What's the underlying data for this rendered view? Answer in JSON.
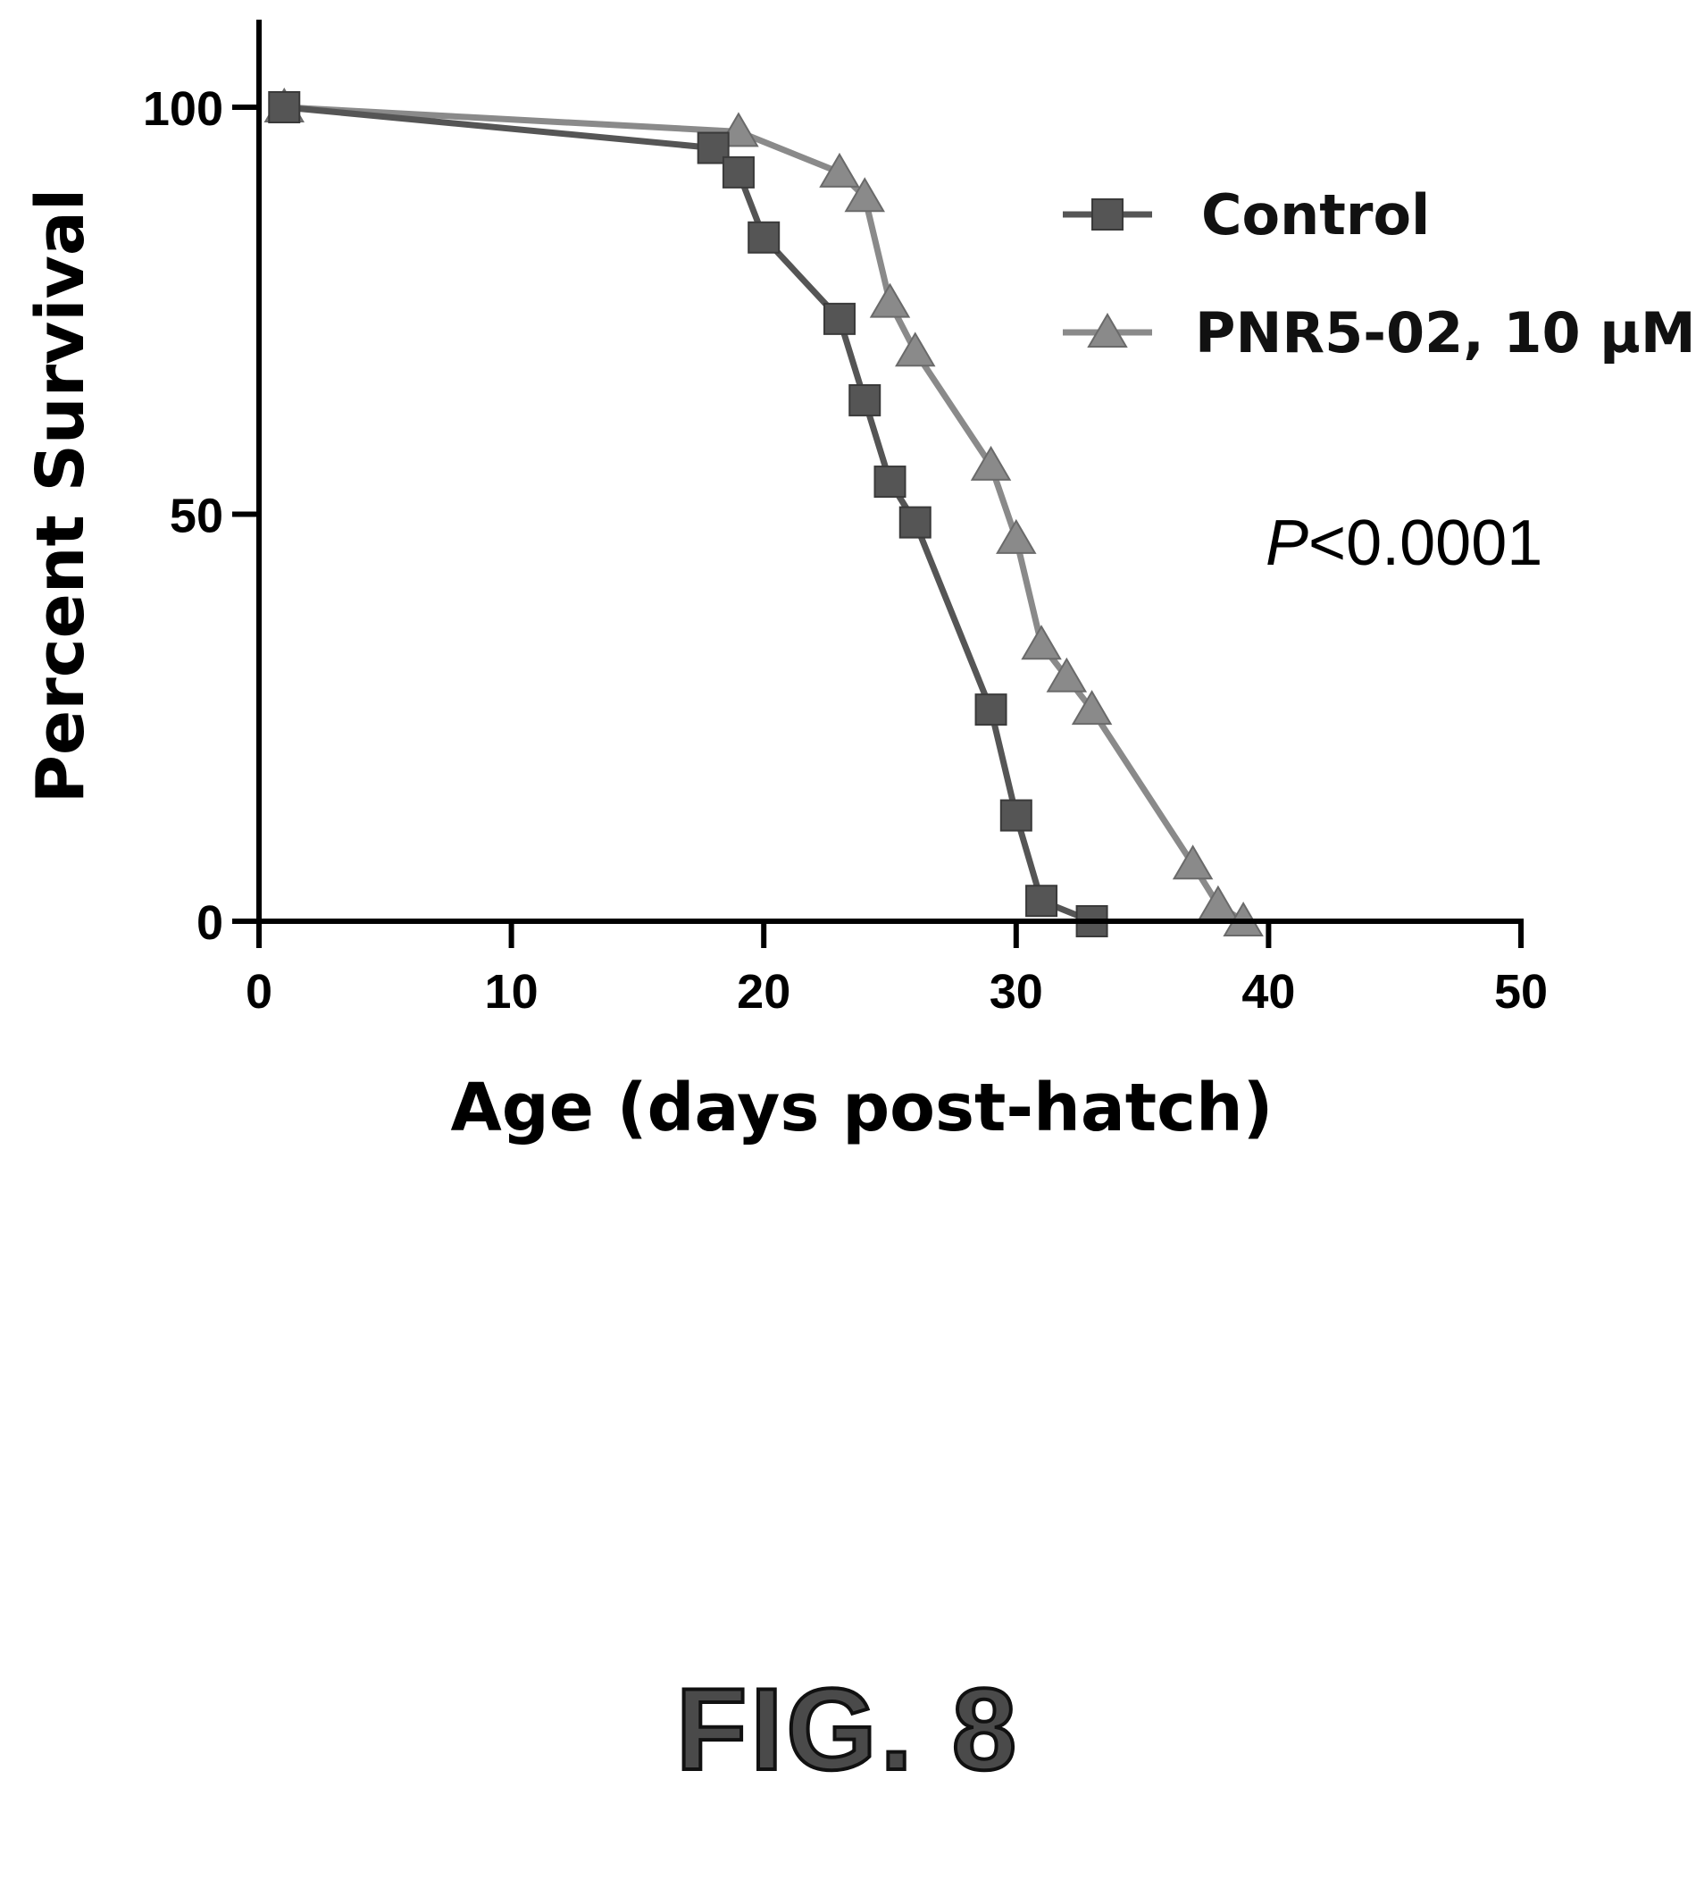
{
  "chart_data": {
    "type": "line",
    "xlabel": "Age (days post-hatch)",
    "ylabel": "Percent Survival",
    "xlim": [
      0,
      50
    ],
    "ylim": [
      0,
      100
    ],
    "xticks": [
      0,
      10,
      20,
      30,
      40,
      50
    ],
    "yticks": [
      0,
      50,
      100
    ],
    "grid": false,
    "legend_position": "top-right",
    "annotation": {
      "italic": "P",
      "text": "<0.0001"
    },
    "series": [
      {
        "name": "Control",
        "marker": "square",
        "color": "#555555",
        "points": [
          [
            1,
            100
          ],
          [
            18,
            95
          ],
          [
            19,
            92
          ],
          [
            20,
            84
          ],
          [
            23,
            74
          ],
          [
            24,
            64
          ],
          [
            25,
            54
          ],
          [
            26,
            49
          ],
          [
            29,
            26
          ],
          [
            30,
            13
          ],
          [
            31,
            2.5
          ],
          [
            33,
            0
          ]
        ]
      },
      {
        "name": "PNR5-02, 10 µM",
        "marker": "triangle",
        "color": "#8a8a8a",
        "points": [
          [
            1,
            100
          ],
          [
            19,
            97
          ],
          [
            23,
            92
          ],
          [
            24,
            89
          ],
          [
            25,
            76
          ],
          [
            26,
            70
          ],
          [
            29,
            56
          ],
          [
            30,
            47
          ],
          [
            31,
            34
          ],
          [
            32,
            30
          ],
          [
            33,
            26
          ],
          [
            37,
            7
          ],
          [
            38,
            2
          ],
          [
            39,
            0
          ]
        ]
      }
    ]
  },
  "figure_label": "FIG. 8"
}
